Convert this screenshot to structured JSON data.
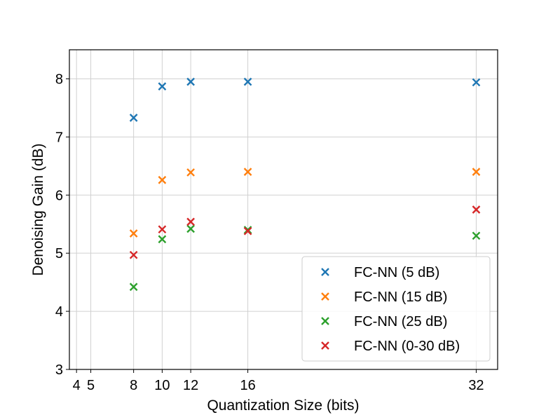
{
  "chart_data": {
    "type": "scatter",
    "title": "",
    "xlabel": "Quantization Size (bits)",
    "ylabel": "Denoising Gain (dB)",
    "xlim": [
      3.5,
      33.5
    ],
    "ylim": [
      3,
      8.5
    ],
    "x_ticks": [
      4,
      5,
      8,
      10,
      12,
      16,
      32
    ],
    "y_ticks": [
      3,
      4,
      5,
      6,
      7,
      8
    ],
    "grid": true,
    "legend_position": "lower-right",
    "marker": "x",
    "series": [
      {
        "name": "FC-NN (5 dB)",
        "color": "#1f77b4",
        "x": [
          8,
          10,
          12,
          16,
          32
        ],
        "y": [
          7.33,
          7.87,
          7.95,
          7.95,
          7.94
        ]
      },
      {
        "name": "FC-NN (15 dB)",
        "color": "#ff7f0e",
        "x": [
          8,
          10,
          12,
          16,
          32
        ],
        "y": [
          5.34,
          6.26,
          6.39,
          6.4,
          6.4
        ]
      },
      {
        "name": "FC-NN (25 dB)",
        "color": "#2ca02c",
        "x": [
          8,
          10,
          12,
          16,
          32
        ],
        "y": [
          4.42,
          5.24,
          5.42,
          5.4,
          5.3
        ]
      },
      {
        "name": "FC-NN (0-30 dB)",
        "color": "#d62728",
        "x": [
          8,
          10,
          12,
          16,
          32
        ],
        "y": [
          4.97,
          5.41,
          5.54,
          5.38,
          5.75
        ]
      }
    ]
  }
}
